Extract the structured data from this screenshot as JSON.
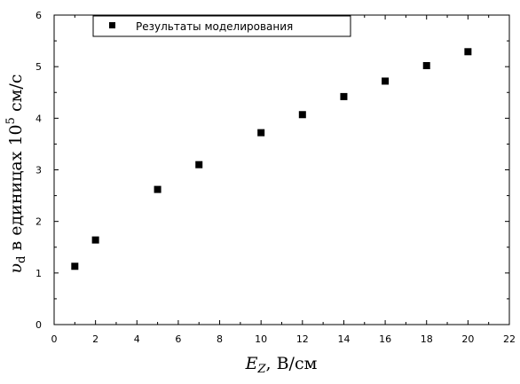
{
  "chart_data": {
    "type": "scatter",
    "title": "",
    "x": [
      1,
      2,
      5,
      7,
      10,
      12,
      14,
      16,
      18,
      20
    ],
    "series": [
      {
        "name": "Результаты моделирования",
        "y": [
          1.13,
          1.64,
          2.62,
          3.1,
          3.72,
          4.07,
          4.42,
          4.72,
          5.02,
          5.29
        ],
        "marker": "square",
        "color": "#000000"
      }
    ],
    "xlim": [
      0,
      22
    ],
    "ylim": [
      0,
      6
    ],
    "x_ticks": [
      "0",
      "2",
      "4",
      "6",
      "8",
      "10",
      "12",
      "14",
      "16",
      "18",
      "20",
      "22"
    ],
    "y_ticks": [
      "0",
      "1",
      "2",
      "3",
      "4",
      "5",
      "6"
    ],
    "xlabel": {
      "symbol": "E",
      "subscript": "Z",
      "units": ",  В/см"
    },
    "ylabel": {
      "symbol": "υ",
      "subscript": "d",
      "text": "  в единицах 10",
      "superscript": "5",
      "units": " см/с"
    },
    "legend_position": "top-left",
    "grid": false
  }
}
